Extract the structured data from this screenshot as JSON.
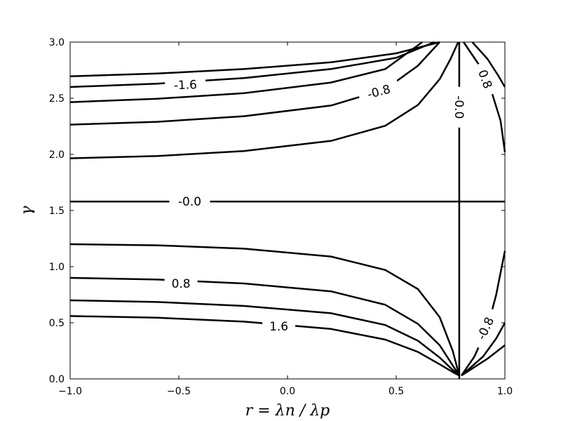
{
  "chart_data": {
    "type": "contour",
    "title": "",
    "xlabel": "r = λn / λp",
    "ylabel": "γ",
    "xlim": [
      -1.0,
      1.0
    ],
    "ylim": [
      0.0,
      3.0
    ],
    "xticks": [
      "−1.0",
      "−0.5",
      "0.0",
      "0.5",
      "1.0"
    ],
    "xtick_values": [
      -1.0,
      -0.5,
      0.0,
      0.5,
      1.0
    ],
    "yticks": [
      "0.0",
      "0.5",
      "1.0",
      "1.5",
      "2.0",
      "2.5",
      "3.0"
    ],
    "ytick_values": [
      0.0,
      0.5,
      1.0,
      1.5,
      2.0,
      2.5,
      3.0
    ],
    "grid": false,
    "line_color": "#000000",
    "contours": [
      {
        "points": [
          [
            -1.0,
            2.695
          ],
          [
            -0.6,
            2.72
          ],
          [
            -0.2,
            2.76
          ],
          [
            0.2,
            2.82
          ],
          [
            0.5,
            2.9
          ],
          [
            0.7,
            3.0
          ]
        ]
      },
      {
        "points": [
          [
            -1.0,
            2.6
          ],
          [
            -0.6,
            2.63
          ],
          [
            -0.2,
            2.68
          ],
          [
            0.2,
            2.76
          ],
          [
            0.5,
            2.86
          ],
          [
            0.675,
            3.0
          ]
        ]
      },
      {
        "points": [
          [
            -1.0,
            2.465
          ],
          [
            -0.6,
            2.495
          ],
          [
            -0.2,
            2.545
          ],
          [
            0.2,
            2.64
          ],
          [
            0.45,
            2.76
          ],
          [
            0.62,
            3.0
          ]
        ]
      },
      {
        "points": [
          [
            -1.0,
            2.265
          ],
          [
            -0.6,
            2.29
          ],
          [
            -0.2,
            2.34
          ],
          [
            0.2,
            2.435
          ],
          [
            0.45,
            2.58
          ],
          [
            0.6,
            2.79
          ],
          [
            0.7,
            3.0
          ]
        ]
      },
      {
        "points": [
          [
            -1.0,
            1.965
          ],
          [
            -0.6,
            1.985
          ],
          [
            -0.2,
            2.03
          ],
          [
            0.2,
            2.12
          ],
          [
            0.45,
            2.255
          ],
          [
            0.6,
            2.44
          ],
          [
            0.7,
            2.67
          ],
          [
            0.75,
            2.85
          ],
          [
            0.785,
            3.0
          ]
        ]
      },
      {
        "points": [
          [
            -1.0,
            1.58
          ],
          [
            1.0,
            1.58
          ]
        ]
      },
      {
        "points": [
          [
            -1.0,
            1.2
          ],
          [
            -0.6,
            1.19
          ],
          [
            -0.2,
            1.16
          ],
          [
            0.2,
            1.09
          ],
          [
            0.45,
            0.97
          ],
          [
            0.6,
            0.8
          ],
          [
            0.7,
            0.55
          ],
          [
            0.76,
            0.25
          ],
          [
            0.79,
            0.03
          ]
        ]
      },
      {
        "points": [
          [
            -1.0,
            0.9
          ],
          [
            -0.6,
            0.885
          ],
          [
            -0.2,
            0.85
          ],
          [
            0.2,
            0.78
          ],
          [
            0.45,
            0.66
          ],
          [
            0.6,
            0.49
          ],
          [
            0.7,
            0.3
          ],
          [
            0.76,
            0.12
          ],
          [
            0.79,
            0.03
          ]
        ]
      },
      {
        "points": [
          [
            -1.0,
            0.7
          ],
          [
            -0.6,
            0.685
          ],
          [
            -0.2,
            0.65
          ],
          [
            0.2,
            0.585
          ],
          [
            0.45,
            0.48
          ],
          [
            0.6,
            0.34
          ],
          [
            0.7,
            0.19
          ],
          [
            0.76,
            0.08
          ],
          [
            0.79,
            0.03
          ]
        ]
      },
      {
        "points": [
          [
            -1.0,
            0.56
          ],
          [
            -0.6,
            0.545
          ],
          [
            -0.2,
            0.51
          ],
          [
            0.2,
            0.445
          ],
          [
            0.45,
            0.35
          ],
          [
            0.6,
            0.24
          ],
          [
            0.7,
            0.13
          ],
          [
            0.77,
            0.05
          ],
          [
            0.79,
            0.03
          ]
        ]
      },
      {
        "points": [
          [
            0.79,
            0.0
          ],
          [
            0.79,
            3.0
          ]
        ]
      },
      {
        "points": [
          [
            0.8,
            0.03
          ],
          [
            0.86,
            0.2
          ],
          [
            0.92,
            0.46
          ],
          [
            0.96,
            0.75
          ],
          [
            1.0,
            1.14
          ]
        ]
      },
      {
        "points": [
          [
            0.8,
            0.03
          ],
          [
            0.9,
            0.2
          ],
          [
            0.96,
            0.36
          ],
          [
            1.0,
            0.5
          ]
        ]
      },
      {
        "points": [
          [
            0.8,
            0.03
          ],
          [
            0.92,
            0.18
          ],
          [
            1.0,
            0.3
          ]
        ]
      },
      {
        "points": [
          [
            0.81,
            3.0
          ],
          [
            0.88,
            2.8
          ],
          [
            0.94,
            2.55
          ],
          [
            0.98,
            2.3
          ],
          [
            1.0,
            2.02
          ]
        ]
      },
      {
        "points": [
          [
            0.85,
            3.0
          ],
          [
            0.92,
            2.85
          ],
          [
            0.97,
            2.7
          ],
          [
            1.0,
            2.6
          ]
        ]
      }
    ],
    "contour_labels": [
      {
        "text": "-1.6",
        "x": -0.47,
        "y": 2.62,
        "angle": -2
      },
      {
        "text": "-0.8",
        "x": 0.42,
        "y": 2.56,
        "angle": -15
      },
      {
        "text": "-0.0",
        "x": 0.79,
        "y": 2.42,
        "angle": 90
      },
      {
        "text": "0.8",
        "x": 0.91,
        "y": 2.67,
        "angle": 70
      },
      {
        "text": "-0.0",
        "x": -0.45,
        "y": 1.58,
        "angle": 0
      },
      {
        "text": "0.8",
        "x": -0.49,
        "y": 0.85,
        "angle": 0
      },
      {
        "text": "1.6",
        "x": -0.04,
        "y": 0.47,
        "angle": 0
      },
      {
        "text": "-0.8",
        "x": 0.91,
        "y": 0.45,
        "angle": -65
      }
    ]
  }
}
